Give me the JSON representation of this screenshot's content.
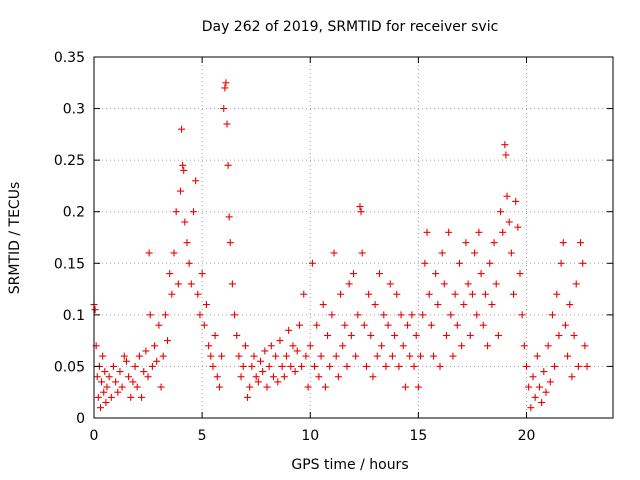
{
  "chart_data": {
    "type": "scatter",
    "title": "Day 262 of 2019, SRMTID for receiver svic",
    "xlabel": "GPS time / hours",
    "ylabel": "SRMTID / TECUs",
    "xlim": [
      0,
      24
    ],
    "ylim": [
      0,
      0.35
    ],
    "x_ticks": [
      0,
      5,
      10,
      15,
      20
    ],
    "x_tick_labels": [
      "0",
      "5",
      "10",
      "15",
      "20"
    ],
    "y_ticks": [
      0,
      0.05,
      0.1,
      0.15,
      0.2,
      0.25,
      0.3,
      0.35
    ],
    "y_tick_labels": [
      "0",
      "0.05",
      "0.1",
      "0.15",
      "0.2",
      "0.25",
      "0.3",
      "0.35"
    ],
    "grid": true,
    "marker": "+",
    "series": [
      {
        "name": "SRMTID",
        "color": "#ee0000",
        "points": [
          [
            0.0,
            0.11
          ],
          [
            0.05,
            0.105
          ],
          [
            0.1,
            0.07
          ],
          [
            0.15,
            0.04
          ],
          [
            0.2,
            0.02
          ],
          [
            0.25,
            0.05
          ],
          [
            0.3,
            0.01
          ],
          [
            0.35,
            0.035
          ],
          [
            0.4,
            0.06
          ],
          [
            0.45,
            0.025
          ],
          [
            0.5,
            0.045
          ],
          [
            0.55,
            0.015
          ],
          [
            0.6,
            0.03
          ],
          [
            0.7,
            0.04
          ],
          [
            0.8,
            0.02
          ],
          [
            0.9,
            0.05
          ],
          [
            1.0,
            0.035
          ],
          [
            1.1,
            0.025
          ],
          [
            1.2,
            0.045
          ],
          [
            1.3,
            0.03
          ],
          [
            1.4,
            0.06
          ],
          [
            1.5,
            0.055
          ],
          [
            1.6,
            0.04
          ],
          [
            1.7,
            0.02
          ],
          [
            1.8,
            0.035
          ],
          [
            1.9,
            0.05
          ],
          [
            2.0,
            0.03
          ],
          [
            2.1,
            0.06
          ],
          [
            2.2,
            0.02
          ],
          [
            2.3,
            0.045
          ],
          [
            2.4,
            0.065
          ],
          [
            2.5,
            0.04
          ],
          [
            2.55,
            0.16
          ],
          [
            2.6,
            0.1
          ],
          [
            2.7,
            0.05
          ],
          [
            2.8,
            0.07
          ],
          [
            2.9,
            0.055
          ],
          [
            3.0,
            0.09
          ],
          [
            3.1,
            0.03
          ],
          [
            3.2,
            0.06
          ],
          [
            3.3,
            0.1
          ],
          [
            3.4,
            0.075
          ],
          [
            3.5,
            0.14
          ],
          [
            3.6,
            0.12
          ],
          [
            3.7,
            0.16
          ],
          [
            3.8,
            0.2
          ],
          [
            3.9,
            0.13
          ],
          [
            4.0,
            0.22
          ],
          [
            4.05,
            0.28
          ],
          [
            4.1,
            0.245
          ],
          [
            4.15,
            0.24
          ],
          [
            4.2,
            0.19
          ],
          [
            4.3,
            0.17
          ],
          [
            4.4,
            0.15
          ],
          [
            4.5,
            0.13
          ],
          [
            4.6,
            0.2
          ],
          [
            4.7,
            0.23
          ],
          [
            4.8,
            0.12
          ],
          [
            4.9,
            0.1
          ],
          [
            5.0,
            0.14
          ],
          [
            5.1,
            0.09
          ],
          [
            5.2,
            0.11
          ],
          [
            5.3,
            0.07
          ],
          [
            5.4,
            0.06
          ],
          [
            5.5,
            0.05
          ],
          [
            5.6,
            0.08
          ],
          [
            5.7,
            0.04
          ],
          [
            5.8,
            0.03
          ],
          [
            5.9,
            0.06
          ],
          [
            6.0,
            0.3
          ],
          [
            6.05,
            0.32
          ],
          [
            6.1,
            0.325
          ],
          [
            6.15,
            0.285
          ],
          [
            6.2,
            0.245
          ],
          [
            6.25,
            0.195
          ],
          [
            6.3,
            0.17
          ],
          [
            6.4,
            0.13
          ],
          [
            6.5,
            0.1
          ],
          [
            6.6,
            0.08
          ],
          [
            6.7,
            0.06
          ],
          [
            6.8,
            0.04
          ],
          [
            6.9,
            0.05
          ],
          [
            7.0,
            0.07
          ],
          [
            7.1,
            0.02
          ],
          [
            7.2,
            0.03
          ],
          [
            7.3,
            0.05
          ],
          [
            7.4,
            0.06
          ],
          [
            7.5,
            0.04
          ],
          [
            7.6,
            0.035
          ],
          [
            7.7,
            0.055
          ],
          [
            7.8,
            0.045
          ],
          [
            7.9,
            0.065
          ],
          [
            8.0,
            0.03
          ],
          [
            8.1,
            0.05
          ],
          [
            8.2,
            0.07
          ],
          [
            8.3,
            0.04
          ],
          [
            8.4,
            0.06
          ],
          [
            8.5,
            0.035
          ],
          [
            8.6,
            0.075
          ],
          [
            8.7,
            0.05
          ],
          [
            8.8,
            0.04
          ],
          [
            8.9,
            0.06
          ],
          [
            9.0,
            0.085
          ],
          [
            9.1,
            0.05
          ],
          [
            9.2,
            0.07
          ],
          [
            9.3,
            0.045
          ],
          [
            9.4,
            0.065
          ],
          [
            9.5,
            0.09
          ],
          [
            9.6,
            0.05
          ],
          [
            9.7,
            0.12
          ],
          [
            9.8,
            0.06
          ],
          [
            9.9,
            0.03
          ],
          [
            10.0,
            0.07
          ],
          [
            10.1,
            0.15
          ],
          [
            10.2,
            0.05
          ],
          [
            10.3,
            0.09
          ],
          [
            10.4,
            0.04
          ],
          [
            10.5,
            0.06
          ],
          [
            10.6,
            0.11
          ],
          [
            10.7,
            0.03
          ],
          [
            10.8,
            0.08
          ],
          [
            10.9,
            0.05
          ],
          [
            11.0,
            0.1
          ],
          [
            11.1,
            0.16
          ],
          [
            11.2,
            0.06
          ],
          [
            11.3,
            0.04
          ],
          [
            11.4,
            0.12
          ],
          [
            11.5,
            0.07
          ],
          [
            11.6,
            0.09
          ],
          [
            11.7,
            0.05
          ],
          [
            11.8,
            0.13
          ],
          [
            11.9,
            0.08
          ],
          [
            12.0,
            0.14
          ],
          [
            12.1,
            0.06
          ],
          [
            12.2,
            0.1
          ],
          [
            12.3,
            0.205
          ],
          [
            12.35,
            0.2
          ],
          [
            12.4,
            0.16
          ],
          [
            12.5,
            0.09
          ],
          [
            12.6,
            0.05
          ],
          [
            12.7,
            0.12
          ],
          [
            12.8,
            0.08
          ],
          [
            12.9,
            0.04
          ],
          [
            13.0,
            0.11
          ],
          [
            13.1,
            0.06
          ],
          [
            13.2,
            0.14
          ],
          [
            13.3,
            0.07
          ],
          [
            13.4,
            0.1
          ],
          [
            13.5,
            0.05
          ],
          [
            13.6,
            0.09
          ],
          [
            13.7,
            0.13
          ],
          [
            13.8,
            0.06
          ],
          [
            13.9,
            0.08
          ],
          [
            14.0,
            0.12
          ],
          [
            14.1,
            0.05
          ],
          [
            14.2,
            0.1
          ],
          [
            14.3,
            0.07
          ],
          [
            14.4,
            0.03
          ],
          [
            14.5,
            0.09
          ],
          [
            14.6,
            0.06
          ],
          [
            14.7,
            0.1
          ],
          [
            14.8,
            0.05
          ],
          [
            14.9,
            0.08
          ],
          [
            15.0,
            0.03
          ],
          [
            15.1,
            0.06
          ],
          [
            15.2,
            0.1
          ],
          [
            15.3,
            0.15
          ],
          [
            15.4,
            0.18
          ],
          [
            15.5,
            0.12
          ],
          [
            15.6,
            0.09
          ],
          [
            15.7,
            0.06
          ],
          [
            15.8,
            0.14
          ],
          [
            15.9,
            0.11
          ],
          [
            16.0,
            0.05
          ],
          [
            16.1,
            0.16
          ],
          [
            16.2,
            0.13
          ],
          [
            16.3,
            0.08
          ],
          [
            16.4,
            0.18
          ],
          [
            16.5,
            0.1
          ],
          [
            16.6,
            0.06
          ],
          [
            16.7,
            0.12
          ],
          [
            16.8,
            0.09
          ],
          [
            16.9,
            0.15
          ],
          [
            17.0,
            0.07
          ],
          [
            17.1,
            0.11
          ],
          [
            17.2,
            0.17
          ],
          [
            17.3,
            0.13
          ],
          [
            17.4,
            0.08
          ],
          [
            17.5,
            0.12
          ],
          [
            17.6,
            0.16
          ],
          [
            17.7,
            0.1
          ],
          [
            17.8,
            0.18
          ],
          [
            17.9,
            0.14
          ],
          [
            18.0,
            0.09
          ],
          [
            18.1,
            0.12
          ],
          [
            18.2,
            0.07
          ],
          [
            18.3,
            0.15
          ],
          [
            18.4,
            0.11
          ],
          [
            18.5,
            0.17
          ],
          [
            18.6,
            0.13
          ],
          [
            18.7,
            0.08
          ],
          [
            18.8,
            0.2
          ],
          [
            18.9,
            0.18
          ],
          [
            19.0,
            0.265
          ],
          [
            19.05,
            0.255
          ],
          [
            19.1,
            0.215
          ],
          [
            19.2,
            0.19
          ],
          [
            19.3,
            0.16
          ],
          [
            19.4,
            0.12
          ],
          [
            19.5,
            0.21
          ],
          [
            19.6,
            0.185
          ],
          [
            19.7,
            0.14
          ],
          [
            19.8,
            0.1
          ],
          [
            19.9,
            0.07
          ],
          [
            20.0,
            0.05
          ],
          [
            20.1,
            0.03
          ],
          [
            20.2,
            0.01
          ],
          [
            20.3,
            0.04
          ],
          [
            20.4,
            0.02
          ],
          [
            20.5,
            0.06
          ],
          [
            20.6,
            0.03
          ],
          [
            20.7,
            0.015
          ],
          [
            20.8,
            0.045
          ],
          [
            20.9,
            0.025
          ],
          [
            21.0,
            0.07
          ],
          [
            21.1,
            0.035
          ],
          [
            21.2,
            0.1
          ],
          [
            21.3,
            0.05
          ],
          [
            21.4,
            0.12
          ],
          [
            21.5,
            0.08
          ],
          [
            21.6,
            0.15
          ],
          [
            21.7,
            0.17
          ],
          [
            21.8,
            0.09
          ],
          [
            21.9,
            0.06
          ],
          [
            22.0,
            0.11
          ],
          [
            22.1,
            0.04
          ],
          [
            22.2,
            0.08
          ],
          [
            22.3,
            0.13
          ],
          [
            22.4,
            0.05
          ],
          [
            22.5,
            0.17
          ],
          [
            22.6,
            0.15
          ],
          [
            22.7,
            0.07
          ],
          [
            22.8,
            0.05
          ]
        ]
      }
    ]
  }
}
